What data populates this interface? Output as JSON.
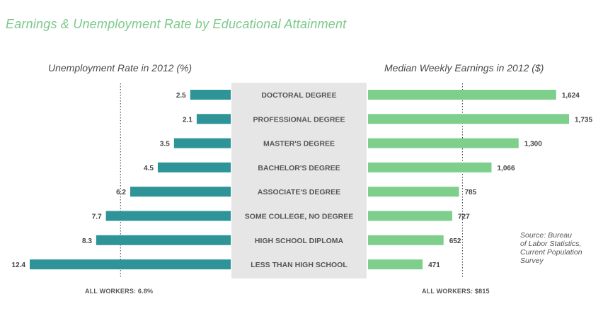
{
  "title": "Earnings & Unemployment Rate by Educational Attainment",
  "colors": {
    "left_bar": "#2e9497",
    "right_bar": "#7ecf8c",
    "center_band": "#e6e6e6",
    "title": "#7cc98a"
  },
  "source": "Source: Bureau\nof Labor Statistics,\nCurrent Population\nSurvey",
  "chart_data": [
    {
      "type": "bar",
      "orientation": "horizontal",
      "direction": "leftward",
      "title": "Unemployment Rate in 2012 (%)",
      "categories": [
        "DOCTORAL DEGREE",
        "PROFESSIONAL DEGREE",
        "MASTER'S DEGREE",
        "BACHELOR'S DEGREE",
        "ASSOCIATE'S DEGREE",
        "SOME COLLEGE, NO DEGREE",
        "HIGH SCHOOL DIPLOMA",
        "LESS THAN HIGH SCHOOL"
      ],
      "values": [
        2.5,
        2.1,
        3.5,
        4.5,
        6.2,
        7.7,
        8.3,
        12.4
      ],
      "value_labels": [
        "2.5",
        "2.1",
        "3.5",
        "4.5",
        "6.2",
        "7.7",
        "8.3",
        "12.4"
      ],
      "reference": {
        "value": 6.8,
        "label": "ALL WORKERS: 6.8%"
      },
      "xlim": [
        0,
        12.4
      ]
    },
    {
      "type": "bar",
      "orientation": "horizontal",
      "direction": "rightward",
      "title": "Median Weekly Earnings in 2012 ($)",
      "categories": [
        "DOCTORAL DEGREE",
        "PROFESSIONAL DEGREE",
        "MASTER'S DEGREE",
        "BACHELOR'S DEGREE",
        "ASSOCIATE'S DEGREE",
        "SOME COLLEGE, NO DEGREE",
        "HIGH SCHOOL DIPLOMA",
        "LESS THAN HIGH SCHOOL"
      ],
      "values": [
        1624,
        1735,
        1300,
        1066,
        785,
        727,
        652,
        471
      ],
      "value_labels": [
        "1,624",
        "1,735",
        "1,300",
        "1,066",
        "785",
        "727",
        "652",
        "471"
      ],
      "reference": {
        "value": 815,
        "label": "ALL WORKERS: $815"
      },
      "xlim": [
        0,
        1735
      ]
    }
  ]
}
